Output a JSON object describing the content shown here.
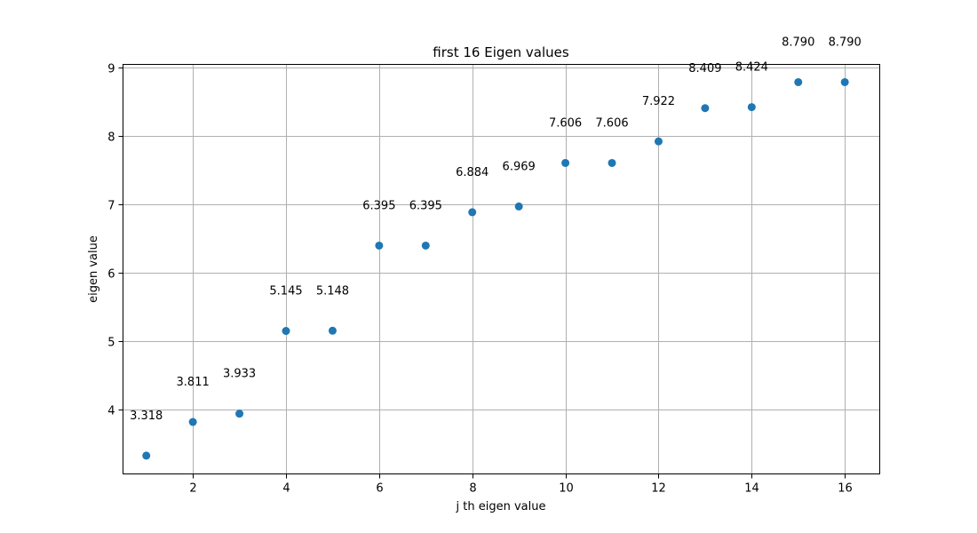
{
  "chart_data": {
    "type": "scatter",
    "title": "first 16 Eigen values",
    "xlabel": "j th eigen value",
    "ylabel": "eigen value",
    "xlim": [
      0.5,
      16.75
    ],
    "ylim": [
      3.05,
      9.05
    ],
    "xticks": [
      2,
      4,
      6,
      8,
      10,
      12,
      14,
      16
    ],
    "yticks": [
      4,
      5,
      6,
      7,
      8,
      9
    ],
    "grid": true,
    "marker_color": "#1f77b4",
    "x": [
      1,
      2,
      3,
      4,
      5,
      6,
      7,
      8,
      9,
      10,
      11,
      12,
      13,
      14,
      15,
      16
    ],
    "y": [
      3.318,
      3.811,
      3.933,
      5.145,
      5.148,
      6.395,
      6.395,
      6.884,
      6.969,
      7.606,
      7.606,
      7.922,
      8.409,
      8.424,
      8.79,
      8.79
    ],
    "labels": [
      "3.318",
      "3.811",
      "3.933",
      "5.145",
      "5.148",
      "6.395",
      "6.395",
      "6.884",
      "6.969",
      "7.606",
      "7.606",
      "7.922",
      "8.409",
      "8.424",
      "8.790",
      "8.790"
    ]
  }
}
